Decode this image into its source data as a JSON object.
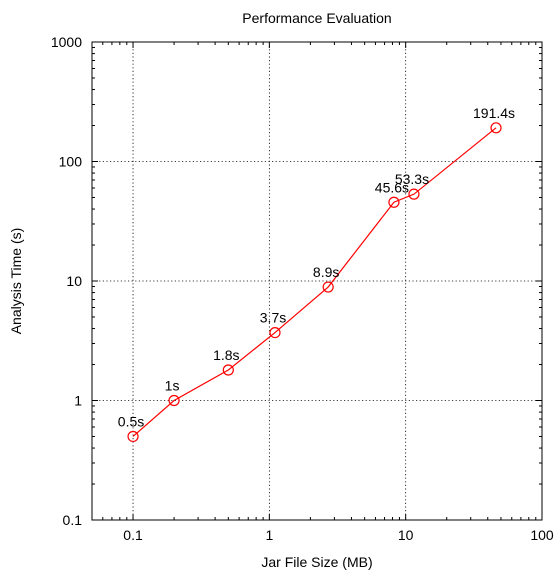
{
  "chart_data": {
    "type": "line",
    "title": "Performance Evaluation",
    "xlabel": "Jar File Size (MB)",
    "ylabel": "Analysis Time (s)",
    "xscale": "log",
    "yscale": "log",
    "xlim": [
      0.05,
      100
    ],
    "ylim": [
      0.1,
      1000
    ],
    "grid": true,
    "x_ticks": [
      0.1,
      1,
      10,
      100
    ],
    "x_tick_labels": [
      "0.1",
      "1",
      "10",
      "100"
    ],
    "y_ticks": [
      0.1,
      1,
      10,
      100,
      1000
    ],
    "y_tick_labels": [
      "0.1",
      "1",
      "10",
      "100",
      "1000"
    ],
    "series": [
      {
        "color": "#ff0000",
        "marker": "open-circle",
        "x": [
          0.1,
          0.2,
          0.5,
          1.1,
          2.7,
          8.2,
          11.5,
          46
        ],
        "y": [
          0.5,
          1,
          1.8,
          3.7,
          8.9,
          45.6,
          53.3,
          191.4
        ],
        "labels": [
          "0.5s",
          "1s",
          "1.8s",
          "3.7s",
          "8.9s",
          "45.6s",
          "53.3s",
          "191.4s"
        ]
      }
    ]
  }
}
